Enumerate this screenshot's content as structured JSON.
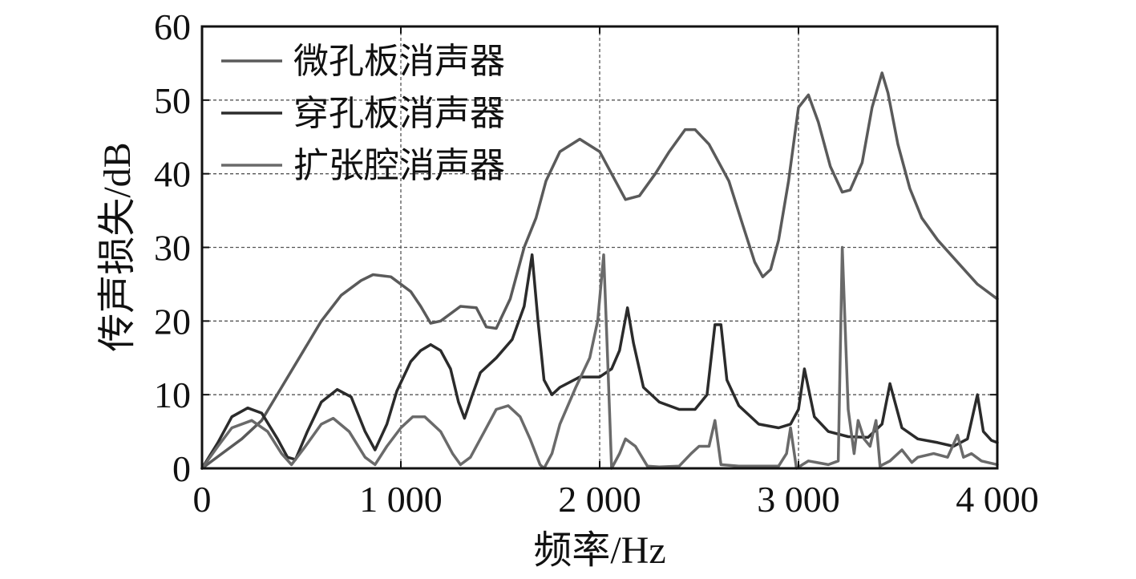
{
  "chart_data": {
    "type": "line",
    "xlabel": "频率/Hz",
    "ylabel": "传声损失/dB",
    "xlim": [
      0,
      4000
    ],
    "ylim": [
      0,
      60
    ],
    "xticks": [
      {
        "value": 0,
        "label": "0"
      },
      {
        "value": 1000,
        "label": "1 000"
      },
      {
        "value": 2000,
        "label": "2 000"
      },
      {
        "value": 3000,
        "label": "3 000"
      },
      {
        "value": 4000,
        "label": "4 000"
      }
    ],
    "yticks": [
      {
        "value": 0,
        "label": "0"
      },
      {
        "value": 10,
        "label": "10"
      },
      {
        "value": 20,
        "label": "20"
      },
      {
        "value": 30,
        "label": "30"
      },
      {
        "value": 40,
        "label": "40"
      },
      {
        "value": 50,
        "label": "50"
      },
      {
        "value": 60,
        "label": "60"
      }
    ],
    "grid": "dashed (x at 1000, 2000, 3000; y every 10)",
    "legend_position": "top-left",
    "series": [
      {
        "name": "微孔板消声器",
        "color": "#5a5a5a",
        "points": [
          [
            0,
            0
          ],
          [
            100,
            2
          ],
          [
            200,
            4
          ],
          [
            300,
            6.5
          ],
          [
            400,
            11
          ],
          [
            500,
            15.5
          ],
          [
            600,
            20
          ],
          [
            700,
            23.5
          ],
          [
            800,
            25.5
          ],
          [
            860,
            26.3
          ],
          [
            950,
            26
          ],
          [
            1050,
            24
          ],
          [
            1100,
            22
          ],
          [
            1150,
            19.7
          ],
          [
            1200,
            20
          ],
          [
            1300,
            22
          ],
          [
            1380,
            21.8
          ],
          [
            1430,
            19.2
          ],
          [
            1480,
            19
          ],
          [
            1550,
            23
          ],
          [
            1620,
            30
          ],
          [
            1680,
            34
          ],
          [
            1730,
            39
          ],
          [
            1800,
            43
          ],
          [
            1900,
            44.7
          ],
          [
            2000,
            43
          ],
          [
            2080,
            39
          ],
          [
            2130,
            36.5
          ],
          [
            2200,
            37
          ],
          [
            2280,
            40
          ],
          [
            2350,
            43
          ],
          [
            2430,
            46
          ],
          [
            2480,
            46
          ],
          [
            2550,
            44
          ],
          [
            2650,
            39
          ],
          [
            2720,
            33
          ],
          [
            2780,
            28
          ],
          [
            2820,
            26
          ],
          [
            2860,
            27
          ],
          [
            2900,
            31
          ],
          [
            2950,
            39
          ],
          [
            3000,
            49
          ],
          [
            3050,
            50.7
          ],
          [
            3100,
            47
          ],
          [
            3160,
            41
          ],
          [
            3220,
            37.5
          ],
          [
            3260,
            37.8
          ],
          [
            3320,
            41.5
          ],
          [
            3370,
            49
          ],
          [
            3420,
            53.7
          ],
          [
            3450,
            51
          ],
          [
            3500,
            44
          ],
          [
            3560,
            38
          ],
          [
            3620,
            34
          ],
          [
            3700,
            31
          ],
          [
            3800,
            28
          ],
          [
            3900,
            25
          ],
          [
            4000,
            23
          ]
        ]
      },
      {
        "name": "穿孔板消声器",
        "color": "#2b2b2b",
        "points": [
          [
            0,
            0
          ],
          [
            80,
            3.5
          ],
          [
            150,
            7
          ],
          [
            230,
            8.2
          ],
          [
            300,
            7.5
          ],
          [
            380,
            4
          ],
          [
            430,
            1.5
          ],
          [
            470,
            1.2
          ],
          [
            530,
            5
          ],
          [
            600,
            9
          ],
          [
            680,
            10.7
          ],
          [
            750,
            9.7
          ],
          [
            820,
            5
          ],
          [
            870,
            2.5
          ],
          [
            930,
            6
          ],
          [
            980,
            10.5
          ],
          [
            1050,
            14.5
          ],
          [
            1100,
            16
          ],
          [
            1150,
            16.8
          ],
          [
            1200,
            16
          ],
          [
            1250,
            13.5
          ],
          [
            1290,
            9
          ],
          [
            1320,
            6.8
          ],
          [
            1360,
            10
          ],
          [
            1400,
            13
          ],
          [
            1480,
            15
          ],
          [
            1560,
            17.5
          ],
          [
            1620,
            22
          ],
          [
            1660,
            29
          ],
          [
            1690,
            20
          ],
          [
            1720,
            12
          ],
          [
            1760,
            10
          ],
          [
            1800,
            11
          ],
          [
            1900,
            12.4
          ],
          [
            2000,
            12.4
          ],
          [
            2060,
            13.5
          ],
          [
            2100,
            16
          ],
          [
            2140,
            21.8
          ],
          [
            2170,
            17
          ],
          [
            2220,
            11
          ],
          [
            2300,
            9
          ],
          [
            2400,
            8
          ],
          [
            2480,
            8
          ],
          [
            2540,
            10
          ],
          [
            2580,
            19.5
          ],
          [
            2610,
            19.5
          ],
          [
            2640,
            12
          ],
          [
            2700,
            8.5
          ],
          [
            2800,
            6
          ],
          [
            2900,
            5.5
          ],
          [
            2960,
            6
          ],
          [
            3000,
            8
          ],
          [
            3030,
            13.5
          ],
          [
            3080,
            7
          ],
          [
            3150,
            5
          ],
          [
            3250,
            4.3
          ],
          [
            3350,
            4.2
          ],
          [
            3420,
            6
          ],
          [
            3460,
            11.5
          ],
          [
            3520,
            5.5
          ],
          [
            3600,
            4
          ],
          [
            3700,
            3.5
          ],
          [
            3780,
            3
          ],
          [
            3850,
            4
          ],
          [
            3900,
            10
          ],
          [
            3930,
            5
          ],
          [
            3970,
            3.8
          ],
          [
            4000,
            3.5
          ]
        ]
      },
      {
        "name": "扩张腔消声器",
        "color": "#6a6a6a",
        "points": [
          [
            0,
            0
          ],
          [
            80,
            3
          ],
          [
            150,
            5.5
          ],
          [
            250,
            6.5
          ],
          [
            330,
            5
          ],
          [
            400,
            2
          ],
          [
            450,
            0.5
          ],
          [
            520,
            3
          ],
          [
            600,
            6
          ],
          [
            660,
            6.8
          ],
          [
            740,
            5
          ],
          [
            820,
            1.5
          ],
          [
            870,
            0.5
          ],
          [
            930,
            3
          ],
          [
            1000,
            5.5
          ],
          [
            1060,
            7
          ],
          [
            1120,
            7
          ],
          [
            1200,
            5
          ],
          [
            1260,
            2
          ],
          [
            1300,
            0.5
          ],
          [
            1350,
            1.5
          ],
          [
            1420,
            5
          ],
          [
            1480,
            8
          ],
          [
            1540,
            8.5
          ],
          [
            1600,
            7
          ],
          [
            1650,
            4
          ],
          [
            1700,
            0.5
          ],
          [
            1720,
            0
          ],
          [
            1760,
            2
          ],
          [
            1800,
            6
          ],
          [
            1880,
            11
          ],
          [
            1950,
            15
          ],
          [
            1990,
            20
          ],
          [
            2020,
            29
          ],
          [
            2040,
            15
          ],
          [
            2060,
            0
          ],
          [
            2100,
            2
          ],
          [
            2130,
            4
          ],
          [
            2180,
            3
          ],
          [
            2240,
            0.3
          ],
          [
            2300,
            0.2
          ],
          [
            2400,
            0.3
          ],
          [
            2460,
            2
          ],
          [
            2500,
            3
          ],
          [
            2550,
            3
          ],
          [
            2580,
            6.5
          ],
          [
            2610,
            0.5
          ],
          [
            2700,
            0.3
          ],
          [
            2900,
            0.3
          ],
          [
            2940,
            2
          ],
          [
            2960,
            5.5
          ],
          [
            2990,
            0
          ],
          [
            3050,
            1
          ],
          [
            3150,
            0.5
          ],
          [
            3200,
            1
          ],
          [
            3220,
            30
          ],
          [
            3250,
            8
          ],
          [
            3280,
            2
          ],
          [
            3300,
            6.5
          ],
          [
            3330,
            4
          ],
          [
            3360,
            3
          ],
          [
            3390,
            6.5
          ],
          [
            3410,
            0.3
          ],
          [
            3460,
            1
          ],
          [
            3520,
            2.5
          ],
          [
            3570,
            0.8
          ],
          [
            3600,
            1.5
          ],
          [
            3680,
            2
          ],
          [
            3750,
            1.5
          ],
          [
            3800,
            4.5
          ],
          [
            3830,
            1.5
          ],
          [
            3870,
            2
          ],
          [
            3920,
            1
          ],
          [
            4000,
            0.5
          ]
        ]
      }
    ]
  }
}
